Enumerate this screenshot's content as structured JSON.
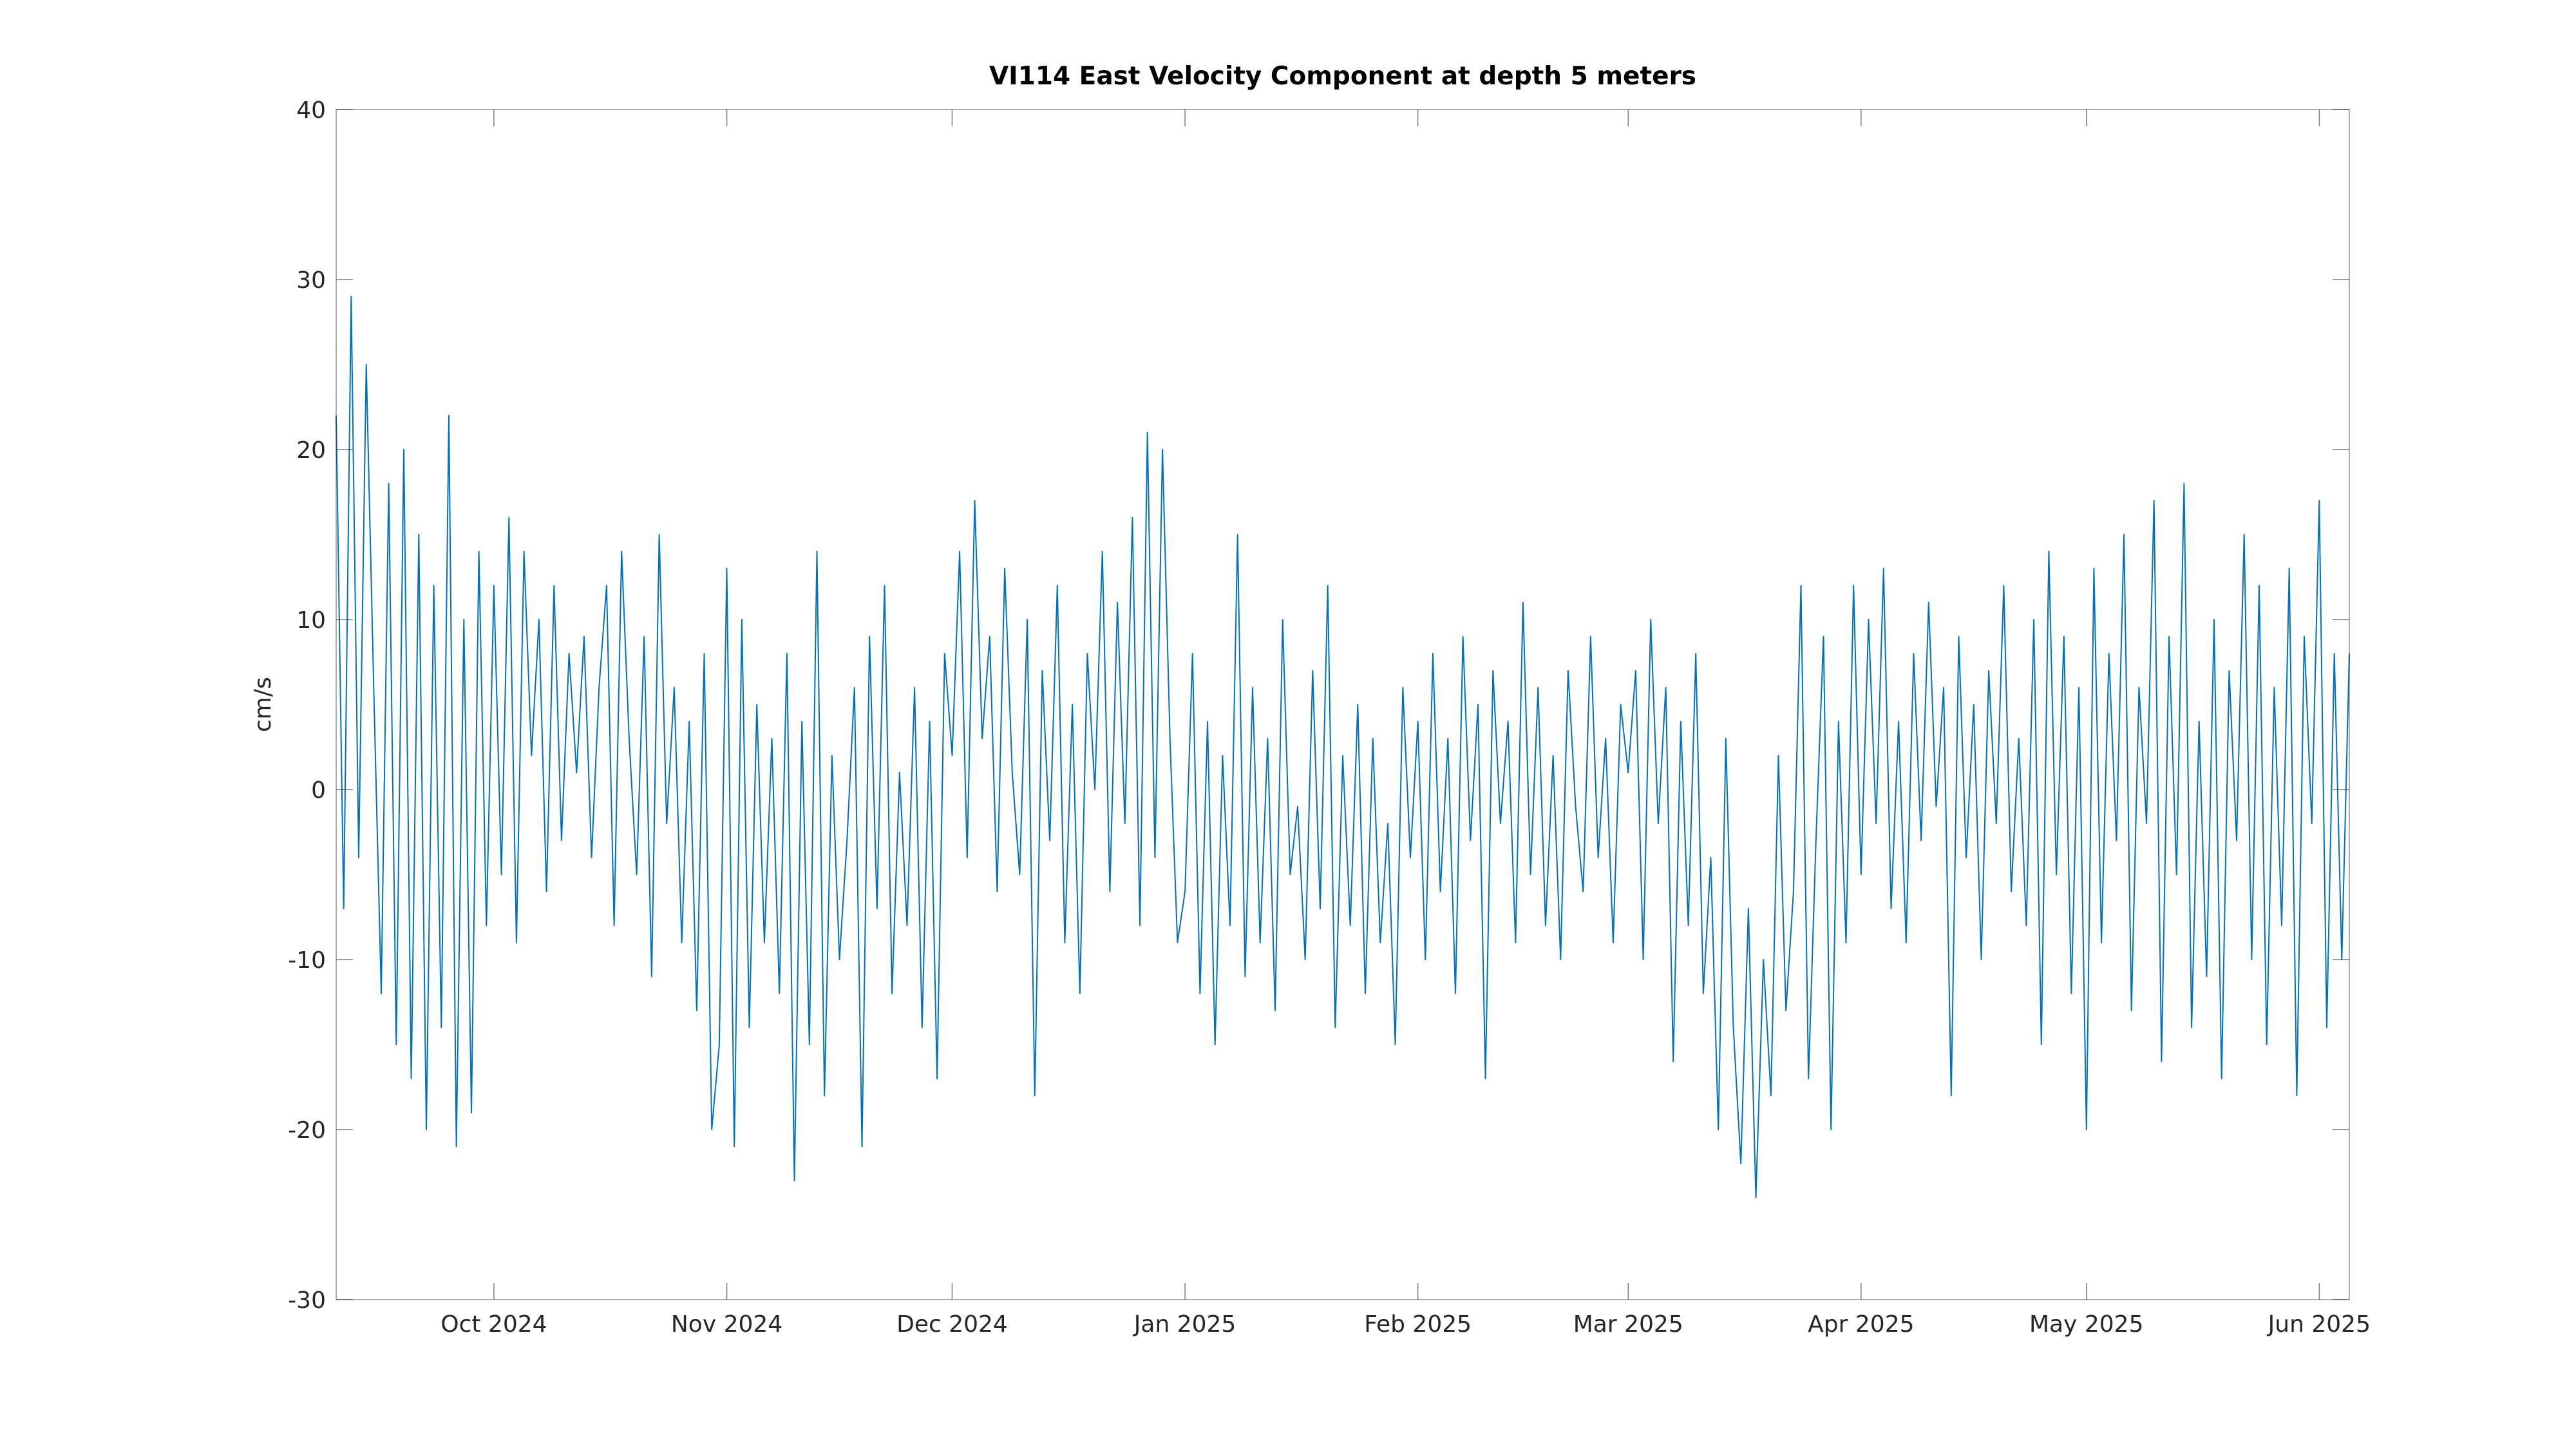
{
  "chart_data": {
    "type": "line",
    "title": "VI114 East Velocity Component at depth 5 meters",
    "y_label": "cm/s",
    "color": "#0072bd",
    "xlim": [
      "2024-09-10",
      "2025-06-05"
    ],
    "xticks": [
      {
        "value": "2024-10-01",
        "label": "Oct 2024"
      },
      {
        "value": "2024-11-01",
        "label": "Nov 2024"
      },
      {
        "value": "2024-12-01",
        "label": "Dec 2024"
      },
      {
        "value": "2025-01-01",
        "label": "Jan 2025"
      },
      {
        "value": "2025-02-01",
        "label": "Feb 2025"
      },
      {
        "value": "2025-03-01",
        "label": "Mar 2025"
      },
      {
        "value": "2025-04-01",
        "label": "Apr 2025"
      },
      {
        "value": "2025-05-01",
        "label": "May 2025"
      },
      {
        "value": "2025-06-01",
        "label": "Jun 2025"
      }
    ],
    "ylim": [
      -30,
      40
    ],
    "yticks": [
      -30,
      -20,
      -10,
      0,
      10,
      20,
      30,
      40
    ],
    "values": [
      22,
      -7,
      29,
      -4,
      25,
      6,
      -12,
      18,
      -15,
      20,
      -17,
      15,
      -20,
      12,
      -14,
      22,
      -21,
      10,
      -19,
      14,
      -8,
      12,
      -5,
      16,
      -9,
      14,
      2,
      10,
      -6,
      12,
      -3,
      8,
      1,
      9,
      -4,
      6,
      12,
      -8,
      14,
      3,
      -5,
      9,
      -11,
      15,
      -2,
      6,
      -9,
      4,
      -13,
      8,
      -20,
      -15,
      13,
      -21,
      10,
      -14,
      5,
      -9,
      3,
      -12,
      8,
      -23,
      4,
      -15,
      14,
      -18,
      2,
      -10,
      -3,
      6,
      -21,
      9,
      -7,
      12,
      -12,
      1,
      -8,
      6,
      -14,
      4,
      -17,
      8,
      2,
      14,
      -4,
      17,
      3,
      9,
      -6,
      13,
      1,
      -5,
      10,
      -18,
      7,
      -3,
      12,
      -9,
      5,
      -12,
      8,
      0,
      14,
      -6,
      11,
      -2,
      16,
      -8,
      21,
      -4,
      20,
      3,
      -9,
      -6,
      8,
      -12,
      4,
      -15,
      2,
      -8,
      15,
      -11,
      6,
      -9,
      3,
      -13,
      10,
      -5,
      -1,
      -10,
      7,
      -7,
      12,
      -14,
      2,
      -8,
      5,
      -12,
      3,
      -9,
      -2,
      -15,
      6,
      -4,
      4,
      -10,
      8,
      -6,
      3,
      -12,
      9,
      -3,
      5,
      -17,
      7,
      -2,
      4,
      -9,
      11,
      -5,
      6,
      -8,
      2,
      -10,
      7,
      -1,
      -6,
      9,
      -4,
      3,
      -9,
      5,
      1,
      7,
      -10,
      10,
      -2,
      6,
      -16,
      4,
      -8,
      8,
      -12,
      -4,
      -20,
      3,
      -14,
      -22,
      -7,
      -24,
      -10,
      -18,
      2,
      -13,
      -6,
      12,
      -17,
      -3,
      9,
      -20,
      4,
      -9,
      12,
      -5,
      10,
      -2,
      13,
      -7,
      4,
      -9,
      8,
      -3,
      11,
      -1,
      6,
      -18,
      9,
      -4,
      5,
      -10,
      7,
      -2,
      12,
      -6,
      3,
      -8,
      10,
      -15,
      14,
      -5,
      9,
      -12,
      6,
      -20,
      13,
      -9,
      8,
      -3,
      15,
      -13,
      6,
      -2,
      17,
      -16,
      9,
      -5,
      18,
      -14,
      4,
      -11,
      10,
      -17,
      7,
      -3,
      15,
      -10,
      12,
      -15,
      6,
      -8,
      13,
      -18,
      9,
      -2,
      17,
      -14,
      8,
      -10,
      8
    ]
  }
}
